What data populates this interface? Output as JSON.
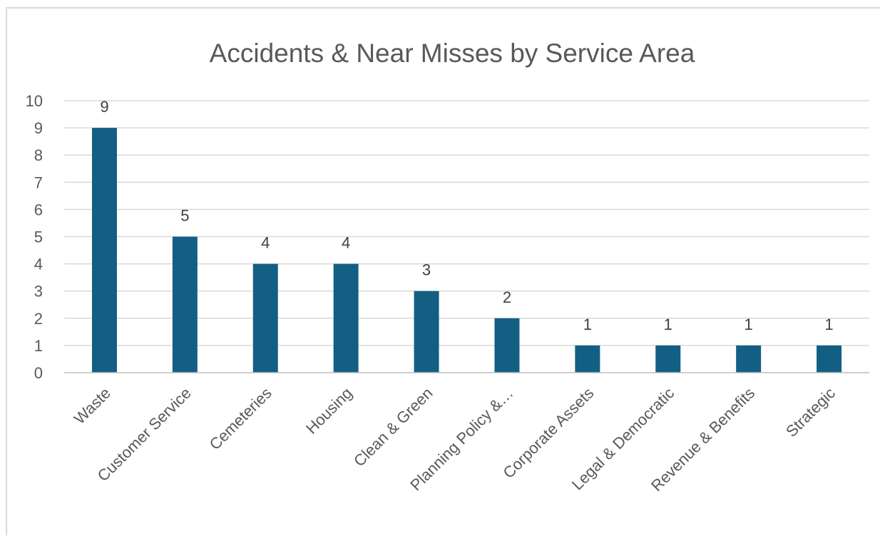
{
  "chart_data": {
    "type": "bar",
    "title": "Accidents & Near Misses by Service Area",
    "xlabel": "",
    "ylabel": "",
    "categories": [
      "Waste",
      "Customer Service",
      "Cemeteries",
      "Housing",
      "Clean & Green",
      "Planning Policy &…",
      "Corporate Assets",
      "Legal & Democratic",
      "Revenue & Benefits",
      "Strategic"
    ],
    "values": [
      9,
      5,
      4,
      4,
      3,
      2,
      1,
      1,
      1,
      1
    ],
    "data_labels": [
      "9",
      "5",
      "4",
      "4",
      "3",
      "2",
      "1",
      "1",
      "1",
      "1"
    ],
    "ylim": [
      0,
      10
    ],
    "yticks": [
      "0",
      "1",
      "2",
      "3",
      "4",
      "5",
      "6",
      "7",
      "8",
      "9",
      "10"
    ],
    "grid": true,
    "legend": "none",
    "bar_color": "#135f84"
  }
}
